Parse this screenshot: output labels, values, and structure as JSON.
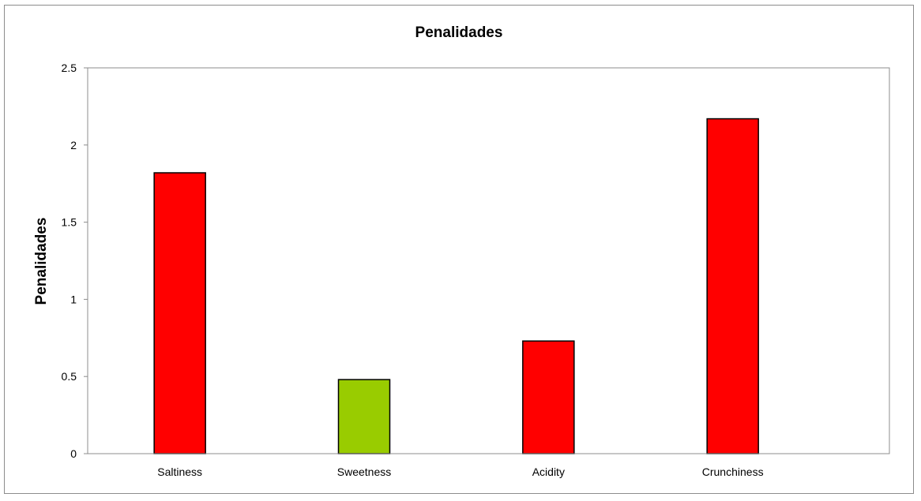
{
  "chart_data": {
    "type": "bar",
    "title": "Penalidades",
    "xlabel": "",
    "ylabel": "Penalidades",
    "categories": [
      "Saltiness",
      "Sweetness",
      "Acidity",
      "Crunchiness"
    ],
    "values": [
      1.82,
      0.48,
      0.73,
      2.17
    ],
    "colors": [
      "#ff0000",
      "#99cc00",
      "#ff0000",
      "#ff0000"
    ],
    "ylim": [
      0,
      2.5
    ],
    "yticks": [
      "0",
      "0.5",
      "1",
      "1.5",
      "2",
      "2.5"
    ],
    "grid": false,
    "legend": "none"
  }
}
